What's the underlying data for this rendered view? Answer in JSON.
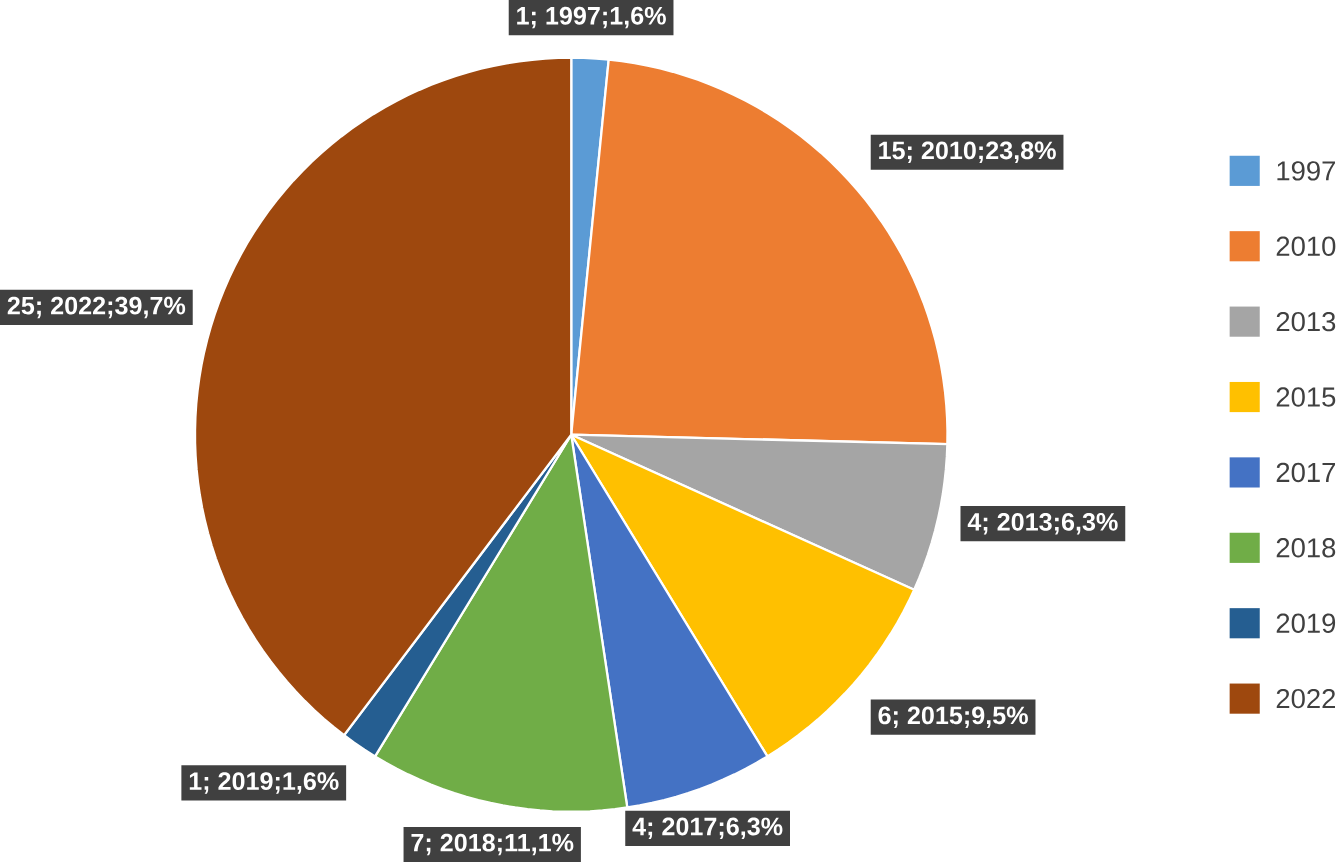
{
  "chart_data": {
    "type": "pie",
    "categories": [
      "1997",
      "2010",
      "2013",
      "2015",
      "2017",
      "2018",
      "2019",
      "2022"
    ],
    "values": [
      1,
      15,
      4,
      6,
      4,
      7,
      1,
      25
    ],
    "colors": [
      "#5b9bd5",
      "#ed7d31",
      "#a5a5a5",
      "#ffc000",
      "#4472c4",
      "#70ad47",
      "#255e91",
      "#9e480e"
    ],
    "value_labels": [
      "1; 1997;1,6%",
      "15; 2010;23,8%",
      "4; 2013;6,3%",
      "6; 2015;9,5%",
      "4; 2017;6,3%",
      "7; 2018;11,1%",
      "1; 2019;1,6%",
      "25; 2022;39,7%"
    ],
    "legend": "right"
  }
}
